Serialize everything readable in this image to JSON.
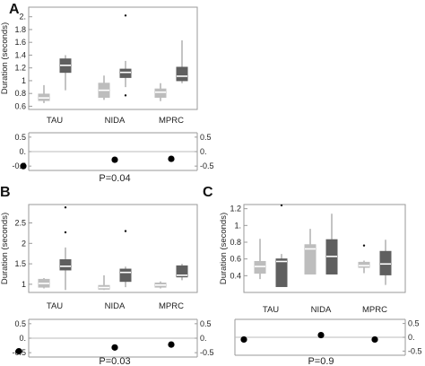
{
  "chart_data": [
    {
      "type": "box",
      "panel": "A",
      "ylabel": "Duration (seconds)",
      "ylim": [
        0.55,
        2.15
      ],
      "yticks": [
        0.6,
        0.8,
        1.0,
        1.2,
        1.4,
        1.6,
        1.8,
        2.0
      ],
      "ytick_labels": [
        "0.6",
        "0.8",
        "1",
        "1.2",
        "1.4",
        "1.6",
        "1.8",
        "2."
      ],
      "categories": [
        "TAU",
        "NIDA",
        "MPRC"
      ],
      "colors": {
        "light": "#bdbdbd",
        "dark": "#5f5f5f"
      },
      "boxes": [
        {
          "group": 0,
          "shade": "light",
          "min": 0.65,
          "q1": 0.69,
          "median": 0.73,
          "q3": 0.79,
          "max": 0.93,
          "outliers": []
        },
        {
          "group": 0,
          "shade": "dark",
          "min": 0.85,
          "q1": 1.13,
          "median": 1.24,
          "q3": 1.34,
          "max": 1.4,
          "outliers": []
        },
        {
          "group": 1,
          "shade": "light",
          "min": 0.7,
          "q1": 0.74,
          "median": 0.85,
          "q3": 0.96,
          "max": 1.08,
          "outliers": []
        },
        {
          "group": 1,
          "shade": "dark",
          "min": 0.9,
          "q1": 1.05,
          "median": 1.13,
          "q3": 1.18,
          "max": 1.31,
          "outliers": [
            2.02,
            0.77
          ]
        },
        {
          "group": 2,
          "shade": "light",
          "min": 0.68,
          "q1": 0.74,
          "median": 0.82,
          "q3": 0.87,
          "max": 0.96,
          "outliers": []
        },
        {
          "group": 2,
          "shade": "dark",
          "min": 0.96,
          "q1": 1.0,
          "median": 1.07,
          "q3": 1.21,
          "max": 1.63,
          "outliers": []
        }
      ],
      "effect": {
        "ylim": [
          -0.65,
          0.65
        ],
        "yticks": [
          0.5,
          0.0,
          -0.5
        ],
        "ytick_labels": [
          "0.5",
          "0.",
          "-0.5"
        ],
        "points": [
          -0.5,
          -0.28,
          -0.25
        ]
      },
      "pvalue": "P=0.04"
    },
    {
      "type": "box",
      "panel": "B",
      "ylabel": "Duration (seconds)",
      "ylim": [
        0.8,
        2.95
      ],
      "yticks": [
        1.0,
        1.5,
        2.0,
        2.5
      ],
      "ytick_labels": [
        "1",
        "1.5",
        "2",
        "2.5"
      ],
      "categories": [
        "TAU",
        "NIDA",
        "MPRC"
      ],
      "colors": {
        "light": "#bdbdbd",
        "dark": "#5f5f5f"
      },
      "boxes": [
        {
          "group": 0,
          "shade": "light",
          "min": 0.9,
          "q1": 0.93,
          "median": 1.02,
          "q3": 1.12,
          "max": 1.15,
          "outliers": []
        },
        {
          "group": 0,
          "shade": "dark",
          "min": 0.86,
          "q1": 1.35,
          "median": 1.44,
          "q3": 1.6,
          "max": 1.9,
          "outliers": [
            2.88,
            2.27
          ]
        },
        {
          "group": 1,
          "shade": "light",
          "min": 0.86,
          "q1": 0.88,
          "median": 0.92,
          "q3": 0.97,
          "max": 1.22,
          "outliers": []
        },
        {
          "group": 1,
          "shade": "dark",
          "min": 0.93,
          "q1": 1.07,
          "median": 1.29,
          "q3": 1.37,
          "max": 1.43,
          "outliers": [
            2.3
          ]
        },
        {
          "group": 2,
          "shade": "light",
          "min": 0.9,
          "q1": 0.93,
          "median": 0.98,
          "q3": 1.03,
          "max": 1.07,
          "outliers": []
        },
        {
          "group": 2,
          "shade": "dark",
          "min": 1.1,
          "q1": 1.18,
          "median": 1.22,
          "q3": 1.45,
          "max": 1.5,
          "outliers": []
        }
      ],
      "effect": {
        "ylim": [
          -0.65,
          0.65
        ],
        "yticks": [
          0.5,
          0.0,
          -0.5
        ],
        "ytick_labels": [
          "0.5",
          "0.",
          "-0.5"
        ],
        "points": [
          -0.45,
          -0.32,
          -0.22
        ]
      },
      "pvalue": "P=0.03"
    },
    {
      "type": "box",
      "panel": "C",
      "ylabel": "Duration (seconds)",
      "ylim": [
        0.2,
        1.25
      ],
      "yticks": [
        0.4,
        0.6,
        0.8,
        1.0,
        1.2
      ],
      "ytick_labels": [
        "0.4",
        "0.6",
        "0.8",
        "1.",
        "1.2"
      ],
      "categories": [
        "TAU",
        "NIDA",
        "MPRC"
      ],
      "colors": {
        "light": "#bdbdbd",
        "dark": "#5f5f5f"
      },
      "boxes": [
        {
          "group": 0,
          "shade": "light",
          "min": 0.36,
          "q1": 0.43,
          "median": 0.51,
          "q3": 0.57,
          "max": 0.84,
          "outliers": []
        },
        {
          "group": 0,
          "shade": "dark",
          "min": 0.27,
          "q1": 0.27,
          "median": 0.57,
          "q3": 0.6,
          "max": 0.66,
          "outliers": [
            1.24
          ]
        },
        {
          "group": 1,
          "shade": "light",
          "min": 0.42,
          "q1": 0.42,
          "median": 0.72,
          "q3": 0.77,
          "max": 0.96,
          "outliers": []
        },
        {
          "group": 1,
          "shade": "dark",
          "min": 0.42,
          "q1": 0.42,
          "median": 0.63,
          "q3": 0.83,
          "max": 1.14,
          "outliers": []
        },
        {
          "group": 2,
          "shade": "light",
          "min": 0.43,
          "q1": 0.5,
          "median": 0.52,
          "q3": 0.56,
          "max": 0.58,
          "outliers": [
            0.76
          ]
        },
        {
          "group": 2,
          "shade": "dark",
          "min": 0.29,
          "q1": 0.41,
          "median": 0.54,
          "q3": 0.69,
          "max": 0.83,
          "outliers": []
        }
      ],
      "effect": {
        "ylim": [
          -0.65,
          0.65
        ],
        "yticks": [
          0.5,
          0.0,
          -0.5
        ],
        "ytick_labels": [
          "0.5",
          "0.",
          "-0.5"
        ],
        "points": [
          -0.08,
          0.08,
          -0.08
        ]
      },
      "pvalue": "P=0.9"
    }
  ]
}
